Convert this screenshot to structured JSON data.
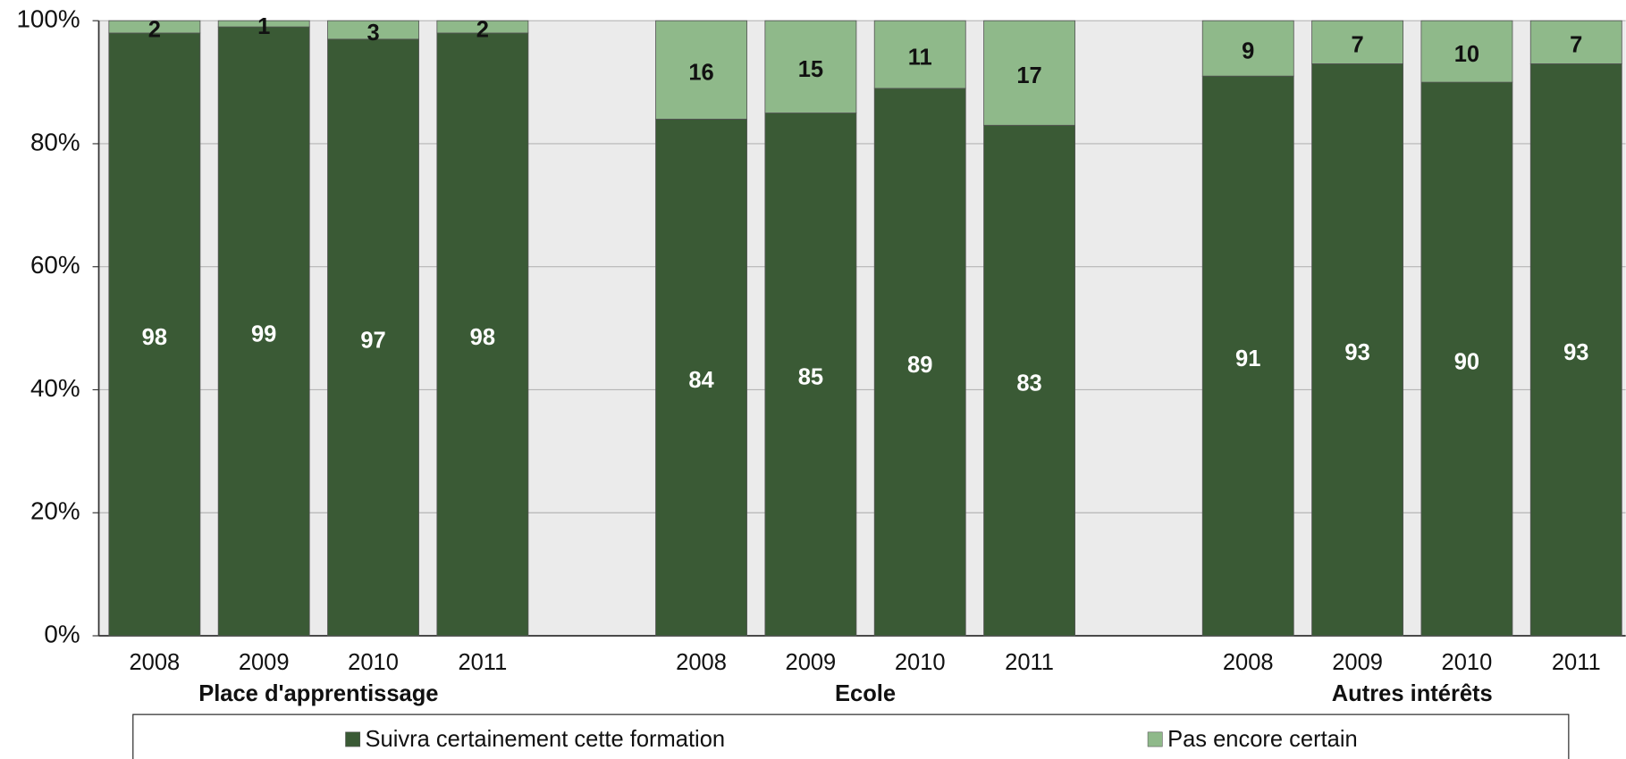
{
  "chart_data": {
    "type": "stacked_bar",
    "categories": [
      "2008",
      "2009",
      "2010",
      "2011",
      "2008",
      "2009",
      "2010",
      "2011",
      "2008",
      "2009",
      "2010",
      "2011"
    ],
    "group_labels": [
      "Place d'apprentissage",
      "Ecole",
      "Autres intérêts"
    ],
    "series": [
      {
        "name": "Suivra certainement cette formation",
        "color": "#3a5a35",
        "values": [
          98,
          99,
          97,
          98,
          84,
          85,
          89,
          83,
          91,
          93,
          90,
          93
        ]
      },
      {
        "name": "Pas encore certain",
        "color": "#8fb98a",
        "values": [
          2,
          1,
          3,
          2,
          16,
          15,
          11,
          17,
          9,
          7,
          10,
          7
        ]
      }
    ],
    "ylim": [
      0,
      100
    ],
    "yticks": [
      {
        "value": 0,
        "label": "0%"
      },
      {
        "value": 20,
        "label": "20%"
      },
      {
        "value": 40,
        "label": "40%"
      },
      {
        "value": 60,
        "label": "60%"
      },
      {
        "value": 80,
        "label": "80%"
      },
      {
        "value": 100,
        "label": "100%"
      }
    ],
    "grid": true
  }
}
